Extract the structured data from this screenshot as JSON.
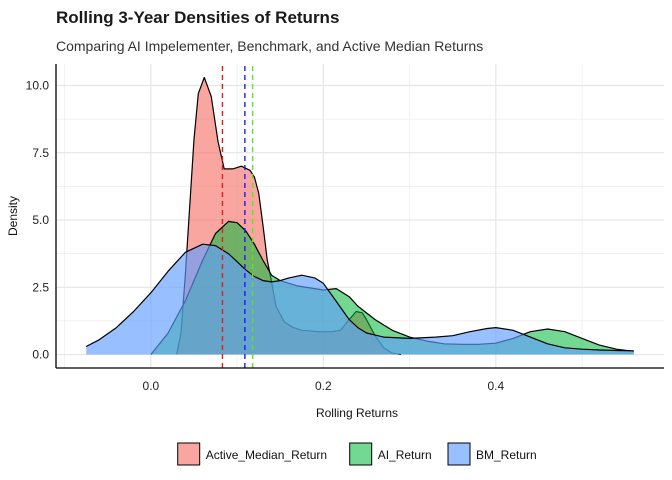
{
  "chart_data": {
    "type": "area",
    "title": "Rolling 3-Year Densities of Returns",
    "subtitle": "Comparing AI Impelementer, Benchmark, and Active Median Returns",
    "xlabel": "Rolling Returns",
    "ylabel": "Density",
    "xlim": [
      -0.11,
      0.595
    ],
    "ylim": [
      -0.5,
      10.8
    ],
    "x_ticks": [
      {
        "value": 0.0,
        "label": "0.0"
      },
      {
        "value": 0.2,
        "label": "0.2"
      },
      {
        "value": 0.4,
        "label": "0.4"
      }
    ],
    "y_ticks": [
      {
        "value": 0.0,
        "label": "0.0"
      },
      {
        "value": 2.5,
        "label": "2.5"
      },
      {
        "value": 5.0,
        "label": "5.0"
      },
      {
        "value": 7.5,
        "label": "7.5"
      },
      {
        "value": 10.0,
        "label": "10.0"
      }
    ],
    "grid": true,
    "legend": "bottom",
    "series": [
      {
        "name": "Active_Median_Return",
        "color": "#F8766D",
        "fill_opacity": 0.65,
        "mean_line": 0.083,
        "mean_line_color": "#e41a1c",
        "points": [
          [
            0.03,
            0
          ],
          [
            0.035,
            0.8
          ],
          [
            0.04,
            3.0
          ],
          [
            0.045,
            5.5
          ],
          [
            0.05,
            8.0
          ],
          [
            0.055,
            9.7
          ],
          [
            0.062,
            10.3
          ],
          [
            0.07,
            9.6
          ],
          [
            0.078,
            7.9
          ],
          [
            0.085,
            6.9
          ],
          [
            0.095,
            6.9
          ],
          [
            0.105,
            7.0
          ],
          [
            0.115,
            6.85
          ],
          [
            0.12,
            6.6
          ],
          [
            0.125,
            6.0
          ],
          [
            0.13,
            4.8
          ],
          [
            0.135,
            3.5
          ],
          [
            0.14,
            2.7
          ],
          [
            0.145,
            1.8
          ],
          [
            0.155,
            1.2
          ],
          [
            0.165,
            1.0
          ],
          [
            0.175,
            0.9
          ],
          [
            0.195,
            0.85
          ],
          [
            0.21,
            0.85
          ],
          [
            0.22,
            0.9
          ],
          [
            0.23,
            1.3
          ],
          [
            0.238,
            1.6
          ],
          [
            0.245,
            1.55
          ],
          [
            0.25,
            1.3
          ],
          [
            0.26,
            0.7
          ],
          [
            0.27,
            0.25
          ],
          [
            0.28,
            0.05
          ],
          [
            0.29,
            0
          ]
        ]
      },
      {
        "name": "AI_Return",
        "color": "#00BA38",
        "fill_opacity": 0.55,
        "mean_line": 0.118,
        "mean_line_color": "#66dd33",
        "points": [
          [
            0.0,
            0
          ],
          [
            0.02,
            0.8
          ],
          [
            0.04,
            2.0
          ],
          [
            0.06,
            3.5
          ],
          [
            0.075,
            4.5
          ],
          [
            0.09,
            4.95
          ],
          [
            0.1,
            4.9
          ],
          [
            0.11,
            4.6
          ],
          [
            0.12,
            4.1
          ],
          [
            0.13,
            3.5
          ],
          [
            0.14,
            2.95
          ],
          [
            0.15,
            2.75
          ],
          [
            0.16,
            2.65
          ],
          [
            0.17,
            2.55
          ],
          [
            0.19,
            2.45
          ],
          [
            0.2,
            2.4
          ],
          [
            0.215,
            2.45
          ],
          [
            0.23,
            2.15
          ],
          [
            0.24,
            1.8
          ],
          [
            0.26,
            1.3
          ],
          [
            0.28,
            0.9
          ],
          [
            0.3,
            0.65
          ],
          [
            0.32,
            0.5
          ],
          [
            0.34,
            0.4
          ],
          [
            0.36,
            0.38
          ],
          [
            0.38,
            0.38
          ],
          [
            0.4,
            0.42
          ],
          [
            0.42,
            0.6
          ],
          [
            0.44,
            0.85
          ],
          [
            0.46,
            0.95
          ],
          [
            0.48,
            0.85
          ],
          [
            0.5,
            0.6
          ],
          [
            0.52,
            0.35
          ],
          [
            0.54,
            0.2
          ],
          [
            0.56,
            0.12
          ]
        ]
      },
      {
        "name": "BM_Return",
        "color": "#619CFF",
        "fill_opacity": 0.65,
        "mean_line": 0.109,
        "mean_line_color": "#1a1aff",
        "points": [
          [
            -0.075,
            0.3
          ],
          [
            -0.06,
            0.55
          ],
          [
            -0.04,
            1.0
          ],
          [
            -0.02,
            1.6
          ],
          [
            0.0,
            2.3
          ],
          [
            0.02,
            3.1
          ],
          [
            0.04,
            3.8
          ],
          [
            0.06,
            4.1
          ],
          [
            0.075,
            4.05
          ],
          [
            0.09,
            3.75
          ],
          [
            0.1,
            3.45
          ],
          [
            0.11,
            3.15
          ],
          [
            0.12,
            2.9
          ],
          [
            0.13,
            2.75
          ],
          [
            0.14,
            2.7
          ],
          [
            0.15,
            2.75
          ],
          [
            0.16,
            2.85
          ],
          [
            0.175,
            2.95
          ],
          [
            0.19,
            2.85
          ],
          [
            0.2,
            2.65
          ],
          [
            0.21,
            2.2
          ],
          [
            0.22,
            1.75
          ],
          [
            0.23,
            1.3
          ],
          [
            0.24,
            1.0
          ],
          [
            0.25,
            0.8
          ],
          [
            0.27,
            0.65
          ],
          [
            0.3,
            0.6
          ],
          [
            0.33,
            0.65
          ],
          [
            0.35,
            0.7
          ],
          [
            0.37,
            0.85
          ],
          [
            0.39,
            0.97
          ],
          [
            0.4,
            1.0
          ],
          [
            0.42,
            0.9
          ],
          [
            0.44,
            0.65
          ],
          [
            0.46,
            0.4
          ],
          [
            0.48,
            0.25
          ],
          [
            0.5,
            0.2
          ],
          [
            0.52,
            0.17
          ],
          [
            0.54,
            0.15
          ],
          [
            0.56,
            0.14
          ]
        ]
      }
    ]
  }
}
